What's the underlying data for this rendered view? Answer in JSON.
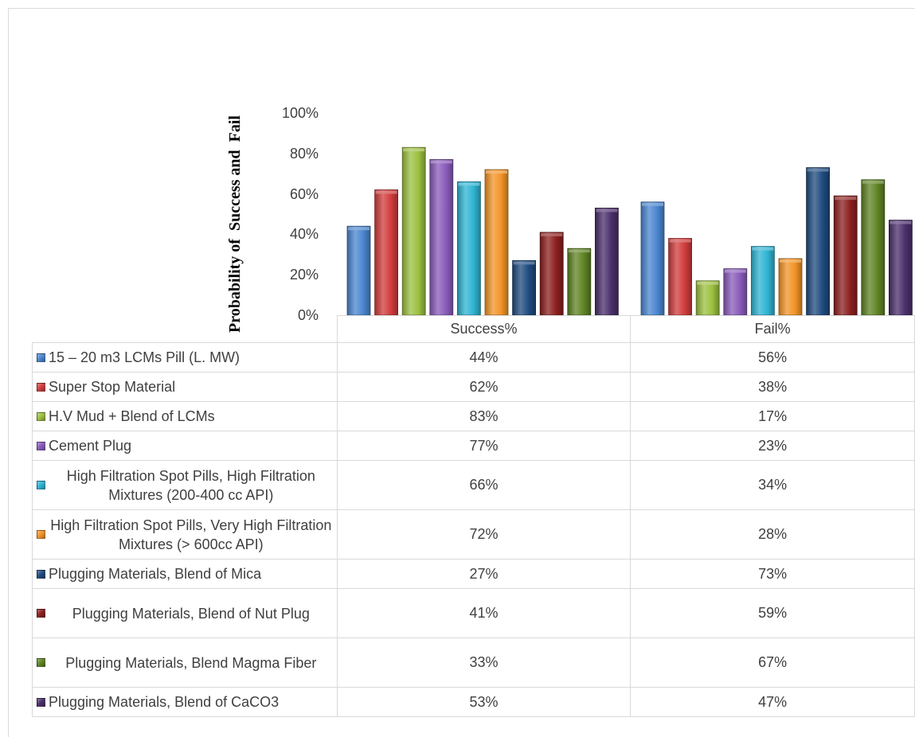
{
  "chart_data": {
    "type": "bar",
    "ylabel": "Probability of  Success and  Fail",
    "yticks": [
      "0%",
      "20%",
      "40%",
      "60%",
      "80%",
      "100%"
    ],
    "ylim": [
      0,
      100
    ],
    "categories": [
      "Success%",
      "Fail%"
    ],
    "series": [
      {
        "name": "15 – 20 m3 LCMs Pill (L. MW)",
        "color": "#4a86d0",
        "values": [
          44,
          56
        ],
        "labels": [
          "44%",
          "56%"
        ]
      },
      {
        "name": "Super Stop Material",
        "color": "#d13c3c",
        "values": [
          62,
          38
        ],
        "labels": [
          "62%",
          "38%"
        ]
      },
      {
        "name": "H.V Mud + Blend of LCMs",
        "color": "#9cc040",
        "values": [
          83,
          17
        ],
        "labels": [
          "83%",
          "17%"
        ]
      },
      {
        "name": "Cement Plug",
        "color": "#8a5cbb",
        "values": [
          77,
          23
        ],
        "labels": [
          "77%",
          "23%"
        ]
      },
      {
        "name": "High Filtration Spot Pills, High Filtration Mixtures (200-400 cc API)",
        "color": "#2fb4d3",
        "values": [
          66,
          34
        ],
        "labels": [
          "66%",
          "34%"
        ]
      },
      {
        "name": "High Filtration Spot Pills, Very High Filtration Mixtures (> 600cc API)",
        "color": "#f39427",
        "values": [
          72,
          28
        ],
        "labels": [
          "72%",
          "28%"
        ]
      },
      {
        "name": "Plugging Materials,  Blend of Mica",
        "color": "#1f4b7f",
        "values": [
          27,
          73
        ],
        "labels": [
          "27%",
          "73%"
        ]
      },
      {
        "name": "Plugging Materials, Blend of Nut Plug",
        "color": "#8c1f1f",
        "values": [
          41,
          59
        ],
        "labels": [
          "41%",
          "59%"
        ]
      },
      {
        "name": "Plugging Materials, Blend Magma Fiber",
        "color": "#5f8424",
        "values": [
          33,
          67
        ],
        "labels": [
          "33%",
          "67%"
        ]
      },
      {
        "name": "Plugging Materials,  Blend of CaCO3",
        "color": "#4b2f6b",
        "values": [
          53,
          47
        ],
        "labels": [
          "53%",
          "47%"
        ]
      }
    ],
    "grid": false,
    "legend": "table-below"
  }
}
